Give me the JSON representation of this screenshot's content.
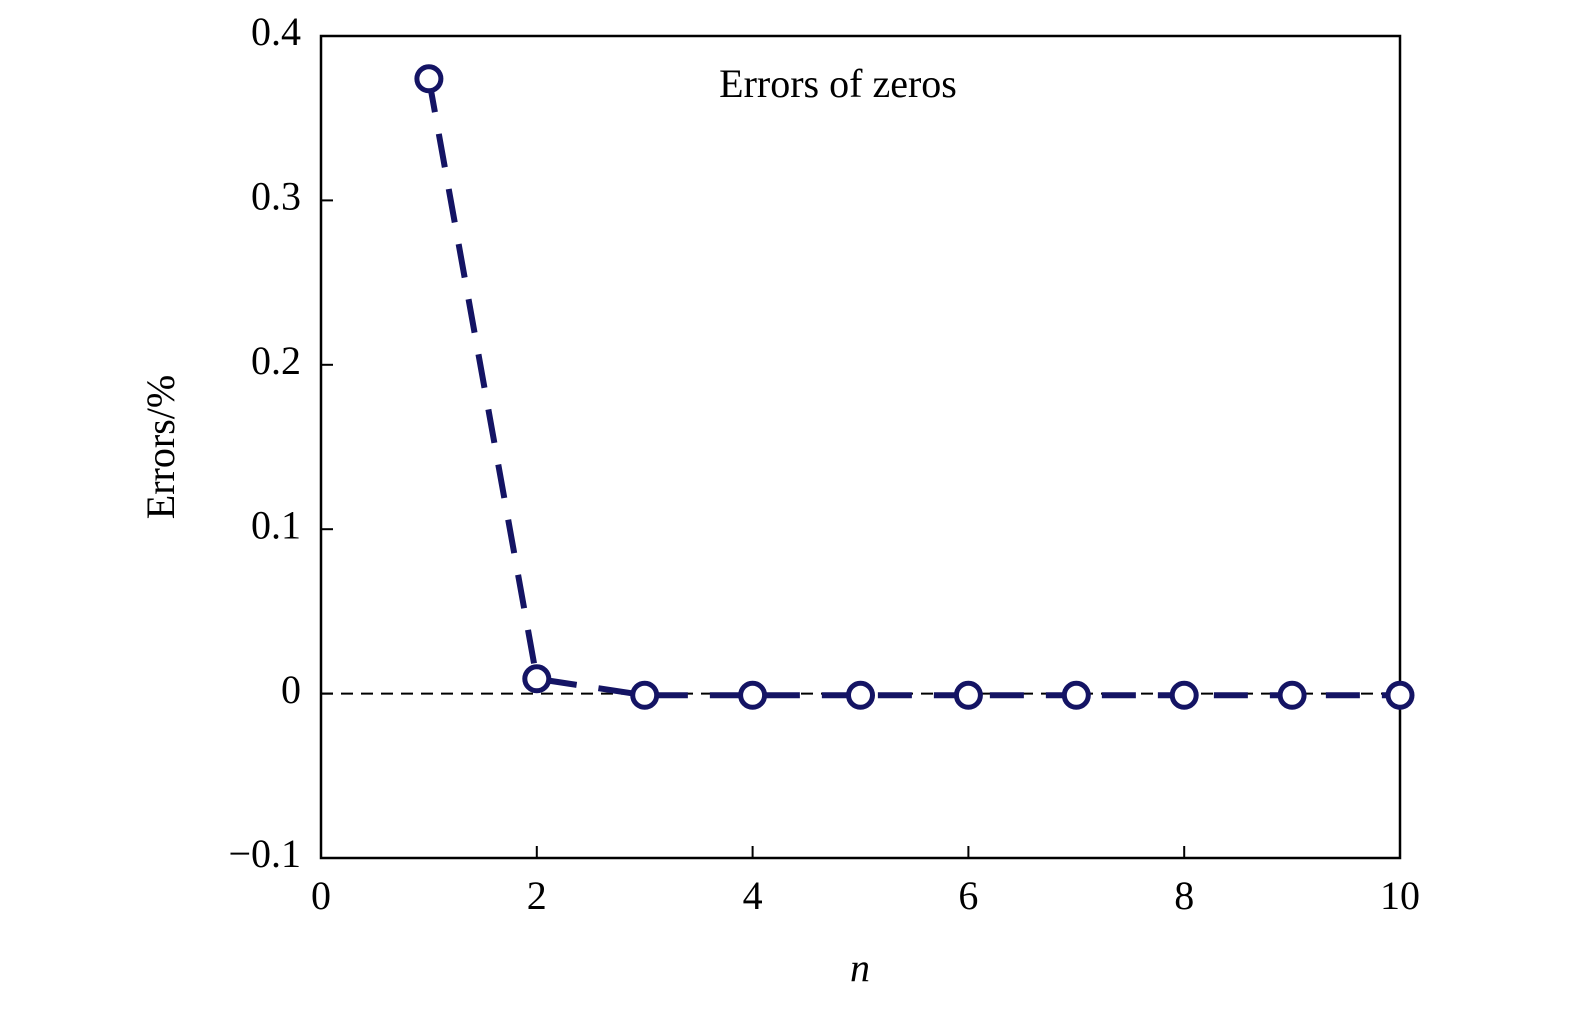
{
  "chart_data": {
    "type": "line",
    "title": "Errors of zeros",
    "x_label": "n",
    "y_label": "Errors/%",
    "x": [
      1,
      2,
      3,
      4,
      5,
      6,
      7,
      8,
      9,
      10
    ],
    "series": [
      {
        "name": "Errors of zeros",
        "color": "#141464",
        "values": [
          0.374,
          0.009,
          -0.001,
          -0.001,
          -0.001,
          -0.001,
          -0.001,
          -0.001,
          -0.001,
          -0.001
        ]
      }
    ],
    "xlim": [
      0,
      10
    ],
    "xticks": [
      0,
      2,
      4,
      6,
      8,
      10
    ],
    "ylim": [
      -0.1,
      0.4
    ],
    "yticks": [
      {
        "value": -0.1,
        "label": "−0.1"
      },
      0,
      0.1,
      0.2,
      0.3,
      0.4
    ],
    "grid": false
  }
}
